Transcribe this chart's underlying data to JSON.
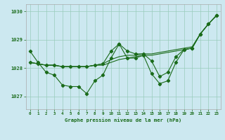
{
  "title": "Graphe pression niveau de la mer (hPa)",
  "hours": [
    0,
    1,
    2,
    3,
    4,
    5,
    6,
    7,
    8,
    9,
    10,
    11,
    12,
    13,
    14,
    15,
    16,
    17,
    18,
    19,
    20,
    21,
    22,
    23
  ],
  "ylim": [
    1026.55,
    1030.25
  ],
  "yticks": [
    1027,
    1028,
    1029,
    1030
  ],
  "bg_color": "#cce8f0",
  "grid_color": "#99ccbb",
  "line_color": "#1a6b1a",
  "curve_main": [
    1028.6,
    1028.2,
    1027.85,
    1027.75,
    1027.4,
    1027.35,
    1027.35,
    1027.1,
    1027.55,
    1027.75,
    1028.35,
    1028.85,
    1028.35,
    1028.35,
    1028.45,
    1027.8,
    1027.45,
    1027.55,
    1028.2,
    1028.65,
    1028.7,
    1029.2,
    1029.55,
    1029.85
  ],
  "curve_smooth1": [
    1028.2,
    1028.15,
    1028.1,
    1028.1,
    1028.05,
    1028.05,
    1028.05,
    1028.05,
    1028.1,
    1028.1,
    1028.2,
    1028.3,
    1028.35,
    1028.4,
    1028.45,
    1028.45,
    1028.5,
    1028.55,
    1028.6,
    1028.65,
    1028.7,
    1029.2,
    1029.55,
    1029.85
  ],
  "curve_smooth2": [
    1028.2,
    1028.15,
    1028.1,
    1028.1,
    1028.05,
    1028.05,
    1028.05,
    1028.05,
    1028.1,
    1028.15,
    1028.3,
    1028.4,
    1028.45,
    1028.45,
    1028.5,
    1028.5,
    1028.55,
    1028.6,
    1028.65,
    1028.7,
    1028.75,
    1029.2,
    1029.55,
    1029.85
  ],
  "curve_dip": [
    1028.2,
    1028.15,
    1028.1,
    1028.1,
    1028.05,
    1028.05,
    1028.05,
    1028.05,
    1028.1,
    1028.15,
    1028.6,
    1028.85,
    1028.6,
    1028.5,
    1028.5,
    1028.25,
    1027.7,
    1027.85,
    1028.4,
    1028.65,
    1028.7,
    1029.2,
    1029.55,
    1029.85
  ],
  "lw": 0.8,
  "marker_size": 2.2
}
